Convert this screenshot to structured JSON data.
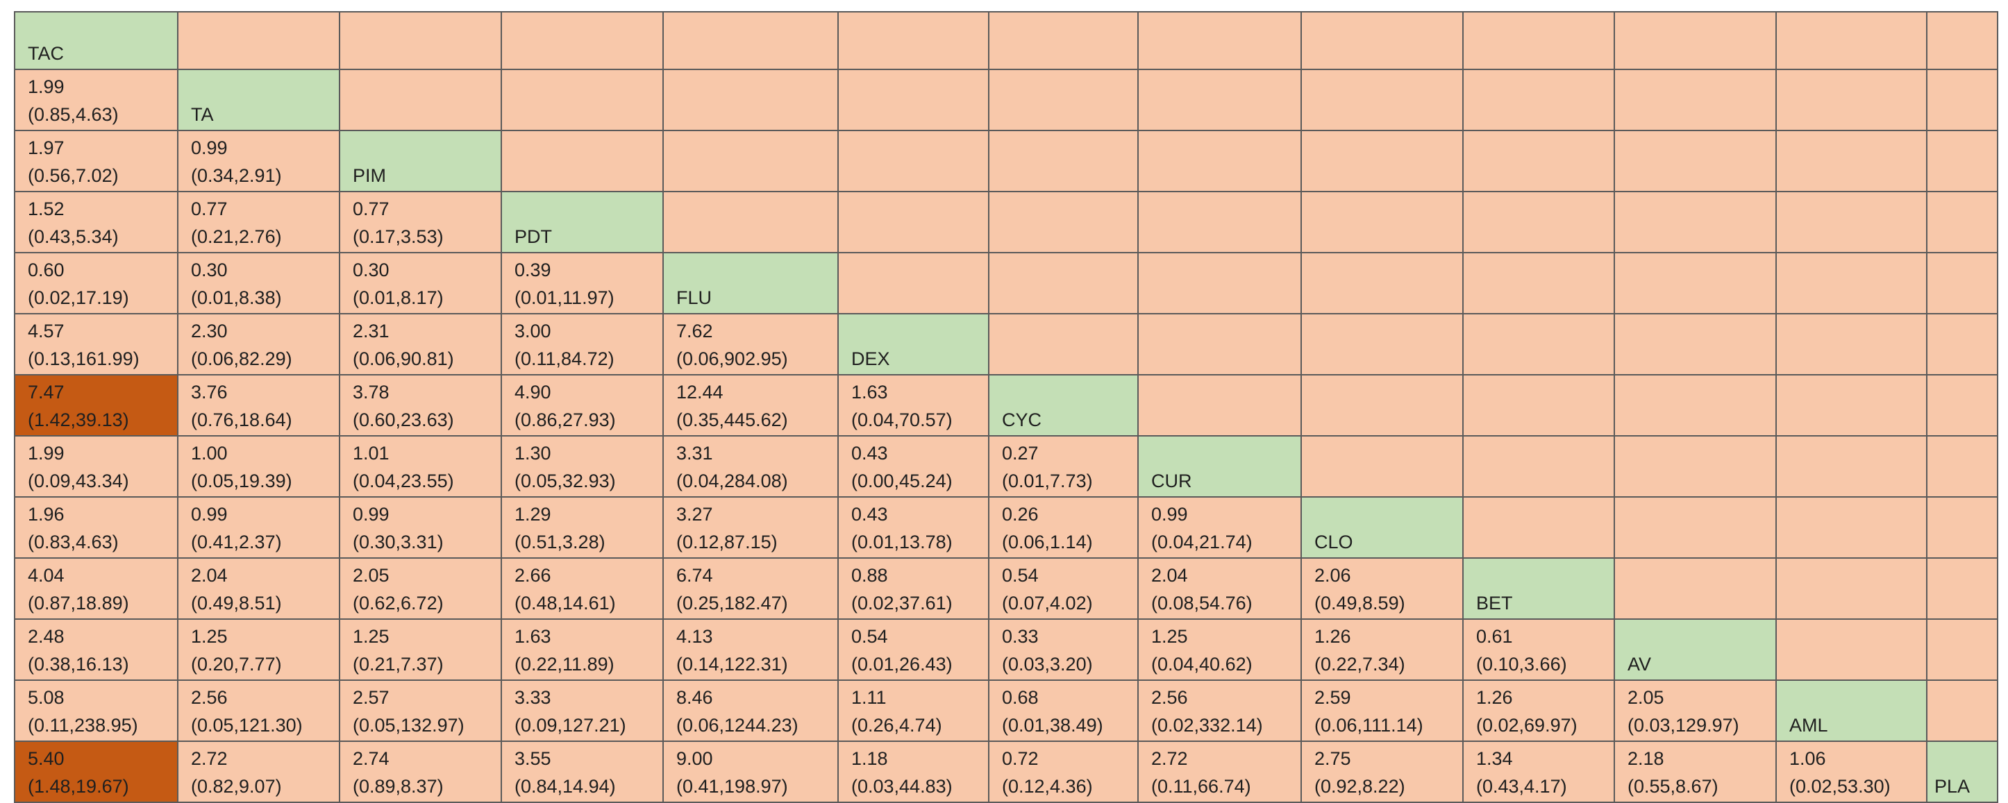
{
  "treatments": [
    "TAC",
    "TA",
    "PIM",
    "PDT",
    "FLU",
    "DEX",
    "CYC",
    "CUR",
    "CLO",
    "BET",
    "AV",
    "AML",
    "PLA"
  ],
  "colors": {
    "cell": "#f8c8aa",
    "diagonal": "#c4dfb6",
    "significant": "#c55a14",
    "border": "#5a5a5a"
  },
  "rows": [
    [],
    [
      [
        "1.99",
        "(0.85,4.63)"
      ]
    ],
    [
      [
        "1.97",
        "(0.56,7.02)"
      ],
      [
        "0.99",
        "(0.34,2.91)"
      ]
    ],
    [
      [
        "1.52",
        "(0.43,5.34)"
      ],
      [
        "0.77",
        "(0.21,2.76)"
      ],
      [
        "0.77",
        "(0.17,3.53)"
      ]
    ],
    [
      [
        "0.60",
        "(0.02,17.19)"
      ],
      [
        "0.30",
        "(0.01,8.38)"
      ],
      [
        "0.30",
        "(0.01,8.17)"
      ],
      [
        "0.39",
        "(0.01,11.97)"
      ]
    ],
    [
      [
        "4.57",
        "(0.13,161.99)"
      ],
      [
        "2.30",
        "(0.06,82.29)"
      ],
      [
        "2.31",
        "(0.06,90.81)"
      ],
      [
        "3.00",
        "(0.11,84.72)"
      ],
      [
        "7.62",
        "(0.06,902.95)"
      ]
    ],
    [
      [
        "7.47",
        "(1.42,39.13)"
      ],
      [
        "3.76",
        "(0.76,18.64)"
      ],
      [
        "3.78",
        "(0.60,23.63)"
      ],
      [
        "4.90",
        "(0.86,27.93)"
      ],
      [
        "12.44",
        "(0.35,445.62)"
      ],
      [
        "1.63",
        "(0.04,70.57)"
      ]
    ],
    [
      [
        "1.99",
        "(0.09,43.34)"
      ],
      [
        "1.00",
        "(0.05,19.39)"
      ],
      [
        "1.01",
        "(0.04,23.55)"
      ],
      [
        "1.30",
        "(0.05,32.93)"
      ],
      [
        "3.31",
        "(0.04,284.08)"
      ],
      [
        "0.43",
        "(0.00,45.24)"
      ],
      [
        "0.27",
        "(0.01,7.73)"
      ]
    ],
    [
      [
        "1.96",
        "(0.83,4.63)"
      ],
      [
        "0.99",
        "(0.41,2.37)"
      ],
      [
        "0.99",
        "(0.30,3.31)"
      ],
      [
        "1.29",
        "(0.51,3.28)"
      ],
      [
        "3.27",
        "(0.12,87.15)"
      ],
      [
        "0.43",
        "(0.01,13.78)"
      ],
      [
        "0.26",
        "(0.06,1.14)"
      ],
      [
        "0.99",
        "(0.04,21.74)"
      ]
    ],
    [
      [
        "4.04",
        "(0.87,18.89)"
      ],
      [
        "2.04",
        "(0.49,8.51)"
      ],
      [
        "2.05",
        "(0.62,6.72)"
      ],
      [
        "2.66",
        "(0.48,14.61)"
      ],
      [
        "6.74",
        "(0.25,182.47)"
      ],
      [
        "0.88",
        "(0.02,37.61)"
      ],
      [
        "0.54",
        "(0.07,4.02)"
      ],
      [
        "2.04",
        "(0.08,54.76)"
      ],
      [
        "2.06",
        "(0.49,8.59)"
      ]
    ],
    [
      [
        "2.48",
        "(0.38,16.13)"
      ],
      [
        "1.25",
        "(0.20,7.77)"
      ],
      [
        "1.25",
        "(0.21,7.37)"
      ],
      [
        "1.63",
        "(0.22,11.89)"
      ],
      [
        "4.13",
        "(0.14,122.31)"
      ],
      [
        "0.54",
        "(0.01,26.43)"
      ],
      [
        "0.33",
        "(0.03,3.20)"
      ],
      [
        "1.25",
        "(0.04,40.62)"
      ],
      [
        "1.26",
        "(0.22,7.34)"
      ],
      [
        "0.61",
        "(0.10,3.66)"
      ]
    ],
    [
      [
        "5.08",
        "(0.11,238.95)"
      ],
      [
        "2.56",
        "(0.05,121.30)"
      ],
      [
        "2.57",
        "(0.05,132.97)"
      ],
      [
        "3.33",
        "(0.09,127.21)"
      ],
      [
        "8.46",
        "(0.06,1244.23)"
      ],
      [
        "1.11",
        "(0.26,4.74)"
      ],
      [
        "0.68",
        "(0.01,38.49)"
      ],
      [
        "2.56",
        "(0.02,332.14)"
      ],
      [
        "2.59",
        "(0.06,111.14)"
      ],
      [
        "1.26",
        "(0.02,69.97)"
      ],
      [
        "2.05",
        "(0.03,129.97)"
      ]
    ],
    [
      [
        "5.40",
        "(1.48,19.67)"
      ],
      [
        "2.72",
        "(0.82,9.07)"
      ],
      [
        "2.74",
        "(0.89,8.37)"
      ],
      [
        "3.55",
        "(0.84,14.94)"
      ],
      [
        "9.00",
        "(0.41,198.97)"
      ],
      [
        "1.18",
        "(0.03,44.83)"
      ],
      [
        "0.72",
        "(0.12,4.36)"
      ],
      [
        "2.72",
        "(0.11,66.74)"
      ],
      [
        "2.75",
        "(0.92,8.22)"
      ],
      [
        "1.34",
        "(0.43,4.17)"
      ],
      [
        "2.18",
        "(0.55,8.67)"
      ],
      [
        "1.06",
        "(0.02,53.30)"
      ]
    ]
  ],
  "significant_cells": [
    [
      6,
      0
    ],
    [
      12,
      0
    ]
  ]
}
